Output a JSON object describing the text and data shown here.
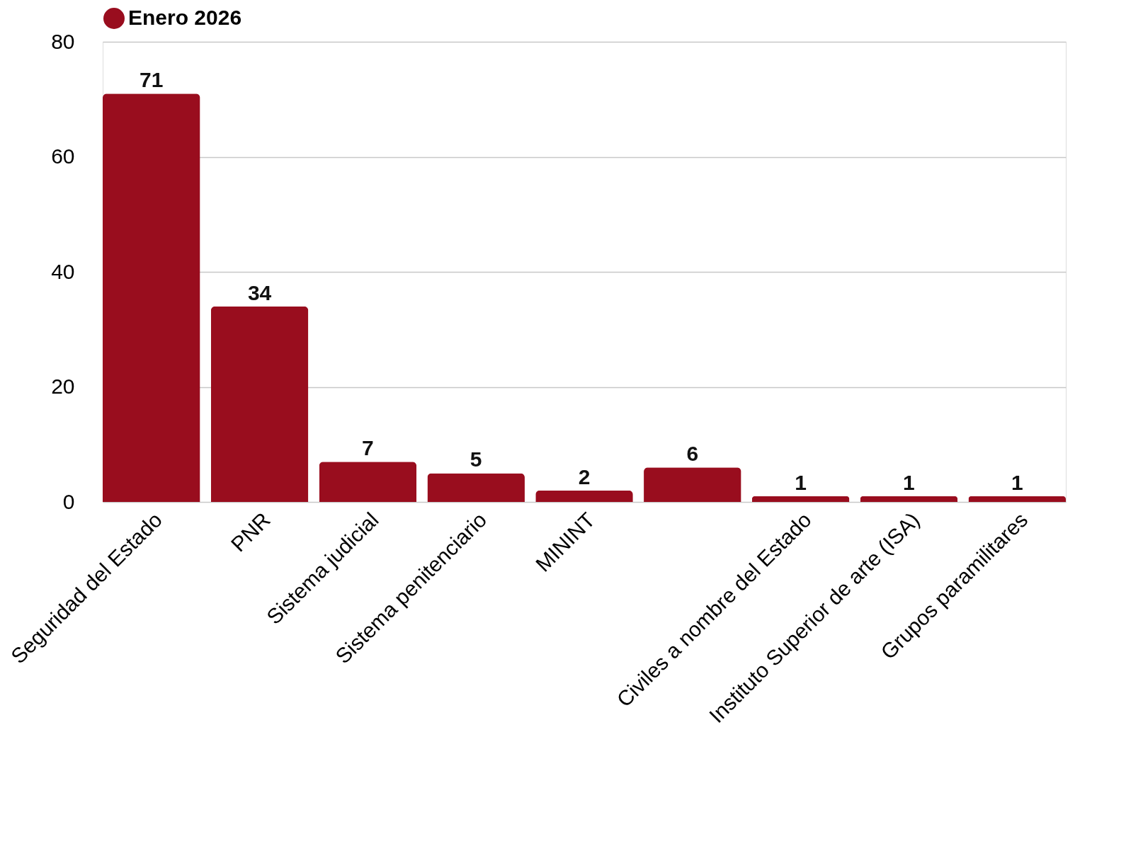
{
  "chart_data": {
    "type": "bar",
    "categories": [
      "Seguridad del Estado",
      "PNR",
      "Sistema judicial",
      "Sistema penitenciario",
      "MININT",
      null,
      "Civiles a nombre del Estado",
      "Instituto Superior de arte (ISA)",
      "Grupos paramilitares"
    ],
    "series": [
      {
        "name": "Enero 2026",
        "color": "#990d1e",
        "values": [
          71,
          34,
          7,
          5,
          2,
          6,
          1,
          1,
          1
        ]
      }
    ],
    "ylim": [
      0,
      80
    ],
    "yticks": [
      0,
      20,
      40,
      60,
      80
    ],
    "grid": "y",
    "legend": "top",
    "data_labels": true
  }
}
